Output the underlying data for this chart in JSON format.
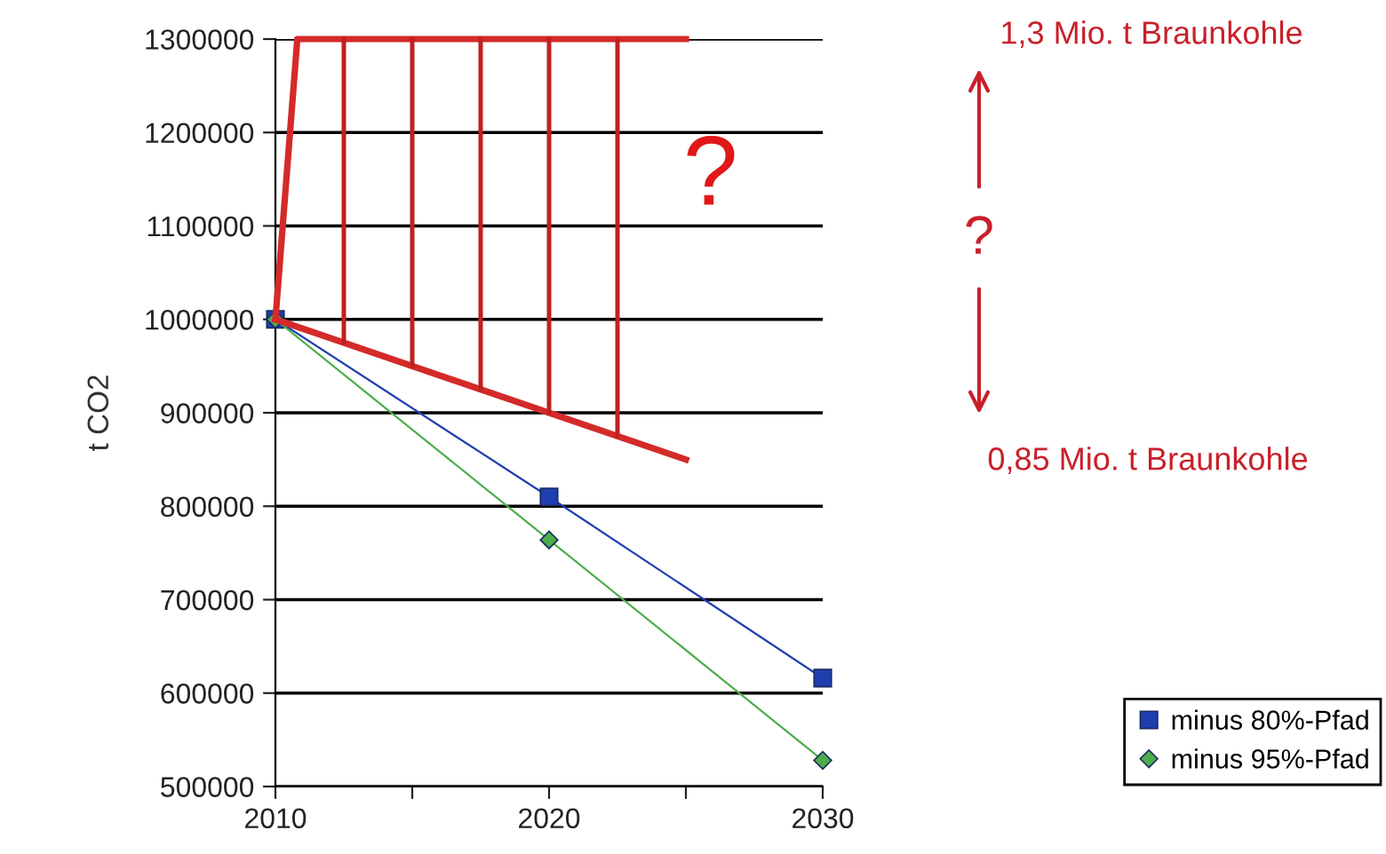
{
  "chart_data": {
    "type": "line",
    "ylabel": "t CO2",
    "xlim": [
      2010,
      2030
    ],
    "ylim": [
      500000,
      1300000
    ],
    "xticks": [
      2010,
      {
        "value": 2015,
        "label": null
      },
      2020,
      {
        "value": 2025,
        "label": null
      },
      2030
    ],
    "yticks": [
      500000,
      600000,
      700000,
      800000,
      900000,
      1000000,
      1100000,
      1200000,
      1300000
    ],
    "grid": "y",
    "legend": "bottom right",
    "series": [
      {
        "name": "minus 80%-Pfad",
        "color": "#1f3fb0",
        "marker": "square",
        "x": [
          2010,
          2020,
          2030
        ],
        "values": [
          1000000,
          810000,
          616000
        ]
      },
      {
        "name": "minus 95%-Pfad",
        "color": "#4cae4c",
        "marker": "diamond",
        "x": [
          2010,
          2020,
          2030
        ],
        "values": [
          1000000,
          764000,
          528000
        ]
      },
      {
        "type": "line",
        "color": "#d42a2a",
        "marker": "none",
        "x": [
          2010,
          2010.8,
          2025
        ],
        "values": [
          1000000,
          1300000,
          1300000
        ]
      },
      {
        "type": "line",
        "color": "#d42a2a",
        "marker": "none",
        "x": [
          2010,
          2025
        ],
        "values": [
          1000000,
          850000
        ]
      },
      {
        "type": "line",
        "color": "#c02020",
        "marker": "none",
        "x": [
          2012.5,
          2012.5
        ],
        "values": [
          975000,
          1300000
        ]
      },
      {
        "type": "line",
        "color": "#c02020",
        "marker": "none",
        "x": [
          2015,
          2015
        ],
        "values": [
          950000,
          1300000
        ]
      },
      {
        "type": "line",
        "color": "#c02020",
        "marker": "none",
        "x": [
          2017.5,
          2017.5
        ],
        "values": [
          925000,
          1300000
        ]
      },
      {
        "type": "line",
        "color": "#c02020",
        "marker": "none",
        "x": [
          2020,
          2020
        ],
        "values": [
          900000,
          1300000
        ]
      },
      {
        "type": "line",
        "color": "#c02020",
        "marker": "none",
        "x": [
          2022.5,
          2022.5
        ],
        "values": [
          875000,
          1300000
        ]
      }
    ],
    "annotations": [
      "?",
      "1,3 Mio. t Braunkohle",
      "?",
      "0,85 Mio. t Braunkohle"
    ]
  }
}
